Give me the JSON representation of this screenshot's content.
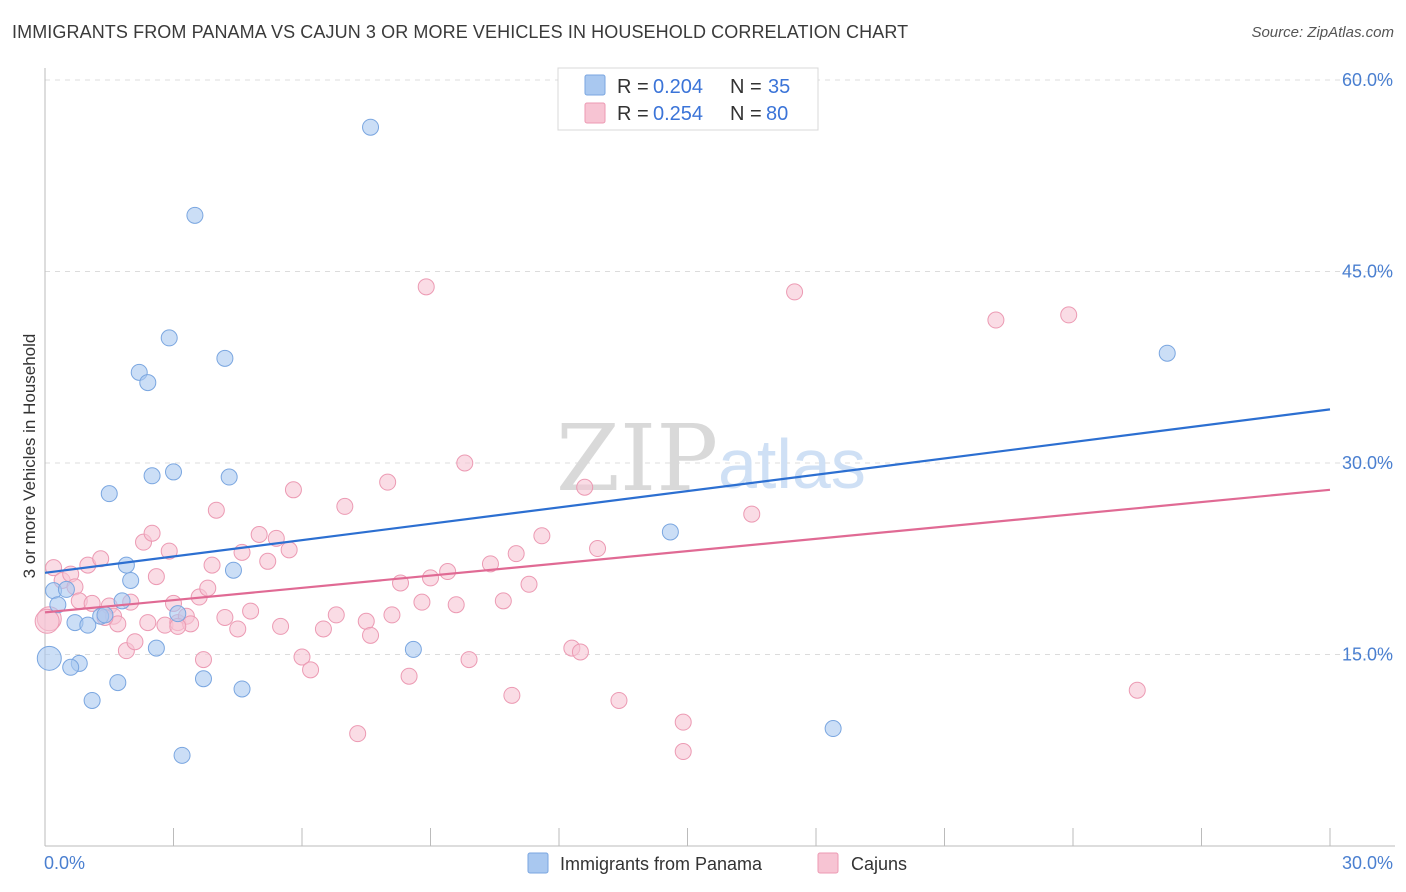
{
  "title": "IMMIGRANTS FROM PANAMA VS CAJUN 3 OR MORE VEHICLES IN HOUSEHOLD CORRELATION CHART",
  "source": "Source: ZipAtlas.com",
  "watermark": {
    "zip": "ZIP",
    "atlas": "atlas"
  },
  "legend": {
    "rows": [
      {
        "r_label": "R =",
        "r_value": "0.204",
        "n_label": "N =",
        "n_value": "35",
        "color": "#a9c8f0",
        "stroke": "#7aa6e0"
      },
      {
        "r_label": "R =",
        "r_value": "0.254",
        "n_label": "N =",
        "n_value": "80",
        "color": "#f7c4d3",
        "stroke": "#ec9ab3"
      }
    ]
  },
  "bottom_legend": [
    {
      "label": "Immigrants from Panama",
      "color": "#a9c8f0",
      "stroke": "#7aa6e0"
    },
    {
      "label": "Cajuns",
      "color": "#f7c4d3",
      "stroke": "#ec9ab3"
    }
  ],
  "chart_data": {
    "type": "scatter",
    "title": "IMMIGRANTS FROM PANAMA VS CAJUN 3 OR MORE VEHICLES IN HOUSEHOLD CORRELATION CHART",
    "xlabel": "",
    "ylabel": "3 or more Vehicles in Household",
    "xlim": [
      0,
      30
    ],
    "ylim": [
      0,
      60
    ],
    "x_tick_labels": [
      "0.0%",
      "30.0%"
    ],
    "y_ticks": [
      15,
      30,
      45,
      60
    ],
    "y_tick_labels": [
      "15.0%",
      "30.0%",
      "45.0%",
      "60.0%"
    ],
    "grid": true,
    "series": [
      {
        "name": "Immigrants from Panama",
        "color": "#a9c8f0",
        "stroke": "#7aa6e0",
        "trend_color": "#2c6fd1",
        "trend": [
          [
            0,
            21.4
          ],
          [
            30,
            34.2
          ]
        ],
        "points": [
          [
            0.2,
            20.0
          ],
          [
            0.3,
            18.9
          ],
          [
            0.5,
            20.1
          ],
          [
            0.7,
            17.5
          ],
          [
            0.8,
            14.3
          ],
          [
            1.0,
            17.3
          ],
          [
            1.1,
            11.4
          ],
          [
            1.3,
            18.0
          ],
          [
            1.5,
            27.6
          ],
          [
            1.7,
            12.8
          ],
          [
            1.8,
            19.2
          ],
          [
            1.9,
            22.0
          ],
          [
            2.0,
            20.8
          ],
          [
            2.2,
            37.1
          ],
          [
            2.4,
            36.3
          ],
          [
            2.5,
            29.0
          ],
          [
            2.6,
            15.5
          ],
          [
            2.9,
            39.8
          ],
          [
            3.0,
            29.3
          ],
          [
            3.1,
            18.2
          ],
          [
            3.2,
            7.1
          ],
          [
            3.5,
            49.4
          ],
          [
            3.7,
            13.1
          ],
          [
            4.2,
            38.2
          ],
          [
            4.3,
            28.9
          ],
          [
            4.4,
            21.6
          ],
          [
            4.6,
            12.3
          ],
          [
            7.6,
            56.3
          ],
          [
            8.6,
            15.4
          ],
          [
            14.6,
            24.6
          ],
          [
            18.4,
            9.2
          ],
          [
            26.2,
            38.6
          ],
          [
            0.1,
            14.7
          ],
          [
            0.6,
            14.0
          ],
          [
            1.4,
            18.1
          ]
        ]
      },
      {
        "name": "Cajuns",
        "color": "#f7c4d3",
        "stroke": "#ec9ab3",
        "trend_color": "#e06a94",
        "trend": [
          [
            0,
            18.3
          ],
          [
            30,
            27.9
          ]
        ],
        "points": [
          [
            0.1,
            17.8
          ],
          [
            0.2,
            21.8
          ],
          [
            0.4,
            20.8
          ],
          [
            0.6,
            21.3
          ],
          [
            0.7,
            20.3
          ],
          [
            0.8,
            19.2
          ],
          [
            1.0,
            22.0
          ],
          [
            1.1,
            19.0
          ],
          [
            1.3,
            22.5
          ],
          [
            1.5,
            18.8
          ],
          [
            1.6,
            18.0
          ],
          [
            1.7,
            17.4
          ],
          [
            1.9,
            15.3
          ],
          [
            2.0,
            19.1
          ],
          [
            2.1,
            16.0
          ],
          [
            2.3,
            23.8
          ],
          [
            2.4,
            17.5
          ],
          [
            2.5,
            24.5
          ],
          [
            2.6,
            21.1
          ],
          [
            2.8,
            17.3
          ],
          [
            2.9,
            23.1
          ],
          [
            3.0,
            19.0
          ],
          [
            3.1,
            17.5
          ],
          [
            3.3,
            18.0
          ],
          [
            3.4,
            17.4
          ],
          [
            3.6,
            19.5
          ],
          [
            3.7,
            14.6
          ],
          [
            3.8,
            20.2
          ],
          [
            3.9,
            22.0
          ],
          [
            4.0,
            26.3
          ],
          [
            4.2,
            17.9
          ],
          [
            4.5,
            17.0
          ],
          [
            4.6,
            23.0
          ],
          [
            4.8,
            18.4
          ],
          [
            5.0,
            24.4
          ],
          [
            5.2,
            22.3
          ],
          [
            5.4,
            24.1
          ],
          [
            5.5,
            17.2
          ],
          [
            5.7,
            23.2
          ],
          [
            5.8,
            27.9
          ],
          [
            6.0,
            14.8
          ],
          [
            6.2,
            13.8
          ],
          [
            6.5,
            17.0
          ],
          [
            6.8,
            18.1
          ],
          [
            7.0,
            26.6
          ],
          [
            7.3,
            8.8
          ],
          [
            7.5,
            17.6
          ],
          [
            7.6,
            16.5
          ],
          [
            8.0,
            28.5
          ],
          [
            8.1,
            18.1
          ],
          [
            8.3,
            20.6
          ],
          [
            8.5,
            13.3
          ],
          [
            8.8,
            19.1
          ],
          [
            8.9,
            43.8
          ],
          [
            9.0,
            21.0
          ],
          [
            9.4,
            21.5
          ],
          [
            9.6,
            18.9
          ],
          [
            9.8,
            30.0
          ],
          [
            9.9,
            14.6
          ],
          [
            10.4,
            22.1
          ],
          [
            10.7,
            19.2
          ],
          [
            10.9,
            11.8
          ],
          [
            11.0,
            22.9
          ],
          [
            11.3,
            20.5
          ],
          [
            11.6,
            24.3
          ],
          [
            12.3,
            15.5
          ],
          [
            12.5,
            15.2
          ],
          [
            12.6,
            28.1
          ],
          [
            12.9,
            23.3
          ],
          [
            13.4,
            11.4
          ],
          [
            14.9,
            9.7
          ],
          [
            14.9,
            7.4
          ],
          [
            16.5,
            26.0
          ],
          [
            17.5,
            43.4
          ],
          [
            22.2,
            41.2
          ],
          [
            23.9,
            41.6
          ],
          [
            25.5,
            12.2
          ],
          [
            1.4,
            17.9
          ],
          [
            3.1,
            17.2
          ],
          [
            0.05,
            17.6
          ]
        ]
      }
    ]
  }
}
